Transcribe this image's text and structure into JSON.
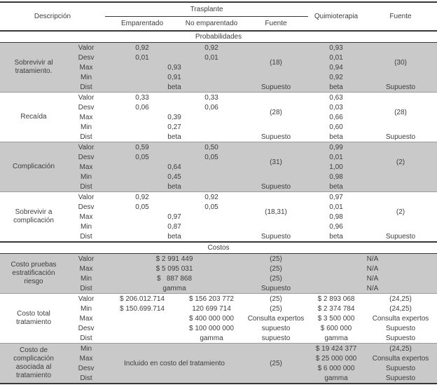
{
  "header": {
    "descripcion": "Descripción",
    "trasplante": "Trasplante",
    "emparentado": "Emparentado",
    "no_emparentado": "No emparentado",
    "fuente_trasplante": "Fuente",
    "quimioterapia": "Quimioterapia",
    "fuente": "Fuente"
  },
  "sections": {
    "probabilidades": "Probabilidades",
    "costos": "Costos"
  },
  "blocks": [
    {
      "label": "Sobrevivir al tratamiento.",
      "fuente": "(18)",
      "fuente2": "(30)",
      "rows": [
        {
          "k": "Valor",
          "emp": "0,92",
          "noemp": "0,92",
          "quimio": "0,93"
        },
        {
          "k": "Desv",
          "emp": "0,01",
          "noemp": "0,01",
          "quimio": "0,01"
        },
        {
          "k": "Max",
          "span": "0,93",
          "quimio": "0,94"
        },
        {
          "k": "Min",
          "span": "0,91",
          "quimio": "0,92"
        },
        {
          "k": "Dist",
          "span": "beta",
          "fuente": "Supuesto",
          "quimio": "beta",
          "fuente2": "Supuesto"
        }
      ]
    },
    {
      "label": "Recaída",
      "fuente": "(28)",
      "fuente2": "(28)",
      "rows": [
        {
          "k": "Valor",
          "emp": "0,33",
          "noemp": "0,33",
          "quimio": "0,63"
        },
        {
          "k": "Desv",
          "emp": "0,06",
          "noemp": "0,06",
          "quimio": "0,03"
        },
        {
          "k": "Max",
          "span": "0,39",
          "quimio": "0,66"
        },
        {
          "k": "Min",
          "span": "0,27",
          "quimio": "0,60"
        },
        {
          "k": "Dist",
          "span": "beta",
          "fuente": "Supuesto",
          "quimio": "beta",
          "fuente2": "Supuesto"
        }
      ]
    },
    {
      "label": "Complicación",
      "fuente": "(31)",
      "fuente2": "(2)",
      "rows": [
        {
          "k": "Valor",
          "emp": "0,59",
          "noemp": "0,50",
          "quimio": "0,99"
        },
        {
          "k": "Desv",
          "emp": "0,05",
          "noemp": "0,05",
          "quimio": "0,01"
        },
        {
          "k": "Max",
          "span": "0,64",
          "quimio": "1,00"
        },
        {
          "k": "Min",
          "span": "0,45",
          "quimio": "0,98"
        },
        {
          "k": "Dist",
          "span": "beta",
          "fuente": "Supuesto",
          "quimio": "beta",
          "fuente2": ""
        }
      ]
    },
    {
      "label": "Sobrevivir a complicación",
      "fuente": "(18,31)",
      "fuente2": "(2)",
      "rows": [
        {
          "k": "Valor",
          "emp": "0,92",
          "noemp": "0,92",
          "quimio": "0,97"
        },
        {
          "k": "Desv",
          "emp": "0,05",
          "noemp": "0,05",
          "quimio": "0,01"
        },
        {
          "k": "Max",
          "span": "0,97",
          "quimio": "0,98"
        },
        {
          "k": "Min",
          "span": "0,87",
          "quimio": "0,96"
        },
        {
          "k": "Dist",
          "span": "beta",
          "fuente": "Supuesto",
          "quimio": "beta",
          "fuente2": "Supuesto"
        }
      ]
    },
    {
      "label": "Costo pruebas estratificación riesgo",
      "rows": [
        {
          "k": "Valor",
          "span": "$ 2 991 449",
          "fuente": "(25)",
          "na": "N/A"
        },
        {
          "k": "Max",
          "span": "$ 5 095 031",
          "fuente": "(25)",
          "na": "N/A"
        },
        {
          "k": "Min",
          "span": "$   887 868",
          "fuente": "(25)",
          "na": "N/A"
        },
        {
          "k": "Dist",
          "span": "gamma",
          "fuente": "Supuesto",
          "na": "N/A"
        }
      ]
    },
    {
      "label": "Costo total tratamiento",
      "rows": [
        {
          "k": "Valor",
          "emp": "$ 206.012.714",
          "noemp": "$ 156 203 772",
          "fuente": "(25)",
          "quimio": "$ 2 893 068",
          "fuente2": "(24,25)"
        },
        {
          "k": "Min",
          "emp": "$ 150.699.714",
          "noemp": "120 699 714",
          "fuente": "(25)",
          "quimio": "$ 2 374 784",
          "fuente2": "(24,25)"
        },
        {
          "k": "Max",
          "emp": "",
          "noemp": "$ 400 000 000",
          "fuente": "Consulta expertos",
          "quimio": "$ 3 500 000",
          "fuente2": "Consulta expertos"
        },
        {
          "k": "Desv",
          "emp": "",
          "noemp": "$ 100 000 000",
          "fuente": "supuesto",
          "quimio": "$ 600 000",
          "fuente2": "Supuesto"
        },
        {
          "k": "Dist",
          "emp": "",
          "noemp": "gamma",
          "fuente": "supuesto",
          "quimio": "gamma",
          "fuente2": "Supuesto"
        }
      ]
    },
    {
      "label": "Costo de complicación asociada al tratamiento",
      "note": "Incluido en costo del tratamiento",
      "fuente": "(25)",
      "rows": [
        {
          "k": "Min",
          "quimio": "$ 19 424 377",
          "fuente2": "(24,25)"
        },
        {
          "k": "Max",
          "quimio": "$ 25 000 000",
          "fuente2": "Consulta expertos"
        },
        {
          "k": "Desv",
          "quimio": "$ 6 000 000",
          "fuente2": "Supuesto"
        },
        {
          "k": "Dist",
          "quimio": "gamma",
          "fuente2": "Supuesto"
        }
      ]
    }
  ]
}
